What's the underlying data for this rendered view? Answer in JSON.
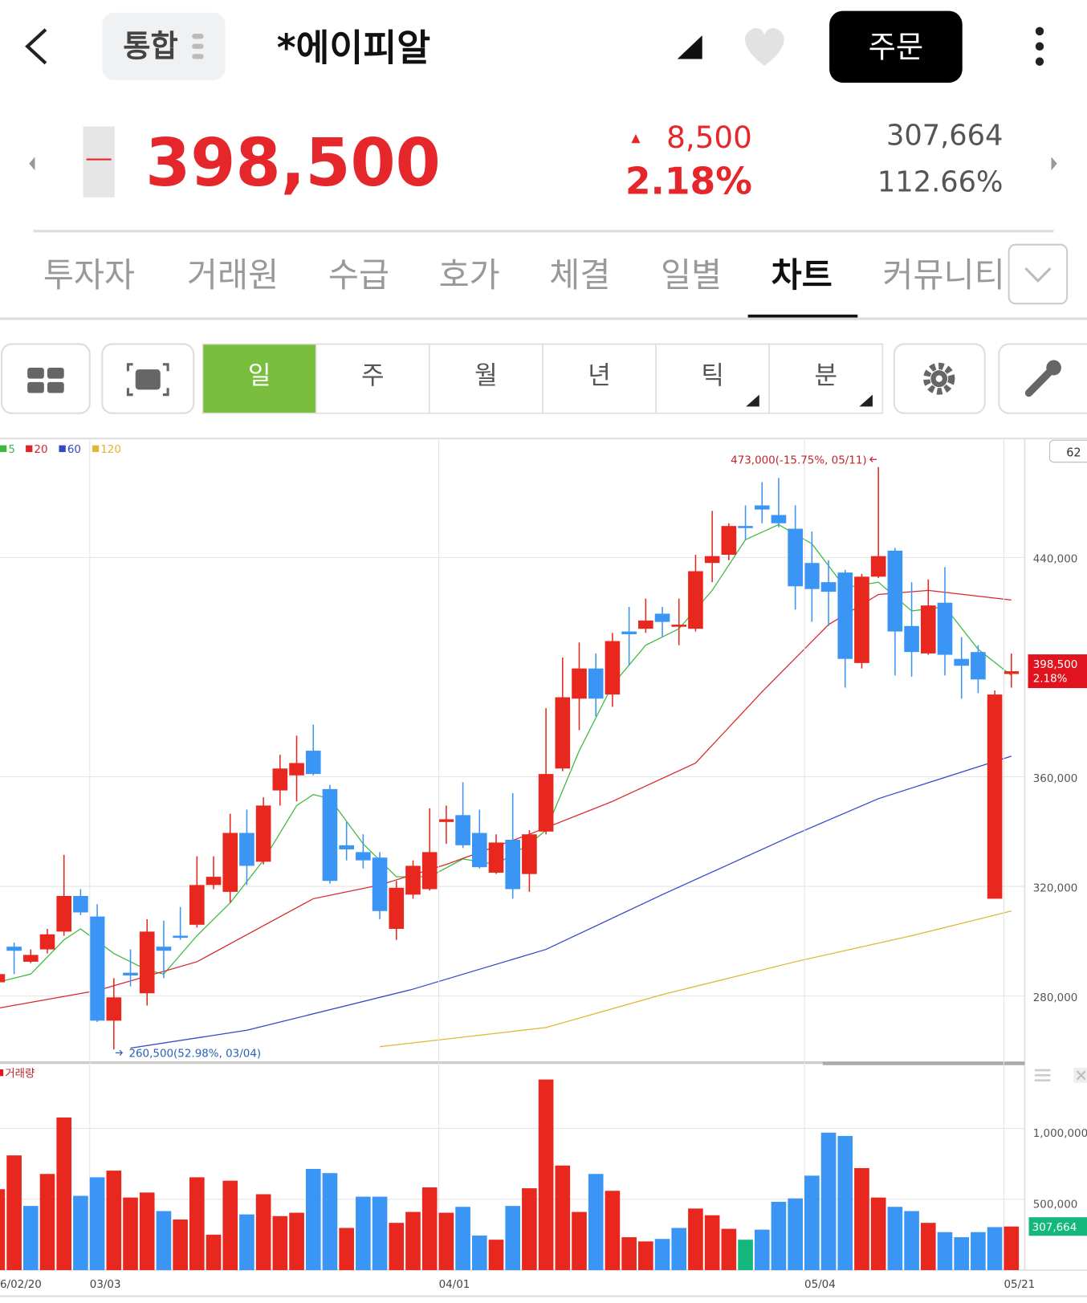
{
  "header": {
    "back": "<",
    "scope": "통합",
    "title": "*에이피알",
    "order": "주문"
  },
  "quote": {
    "price": "398,500",
    "arrow": "▲",
    "change": "8,500",
    "change_rate": "2.18%",
    "volume": "307,664",
    "volume_rate": "112.66%"
  },
  "tabs": {
    "items": [
      "투자자",
      "거래원",
      "수급",
      "호가",
      "체결",
      "일별",
      "차트",
      "커뮤니티"
    ],
    "selected": 6
  },
  "periods": {
    "items": [
      "일",
      "주",
      "월",
      "년",
      "틱",
      "분"
    ],
    "selected": 0
  },
  "chart_data": [
    {
      "type": "candlestick",
      "up_color": "#e8281e",
      "down_color": "#3a95f5",
      "visible_count": "62",
      "categories": [
        "6/02/20",
        null,
        null,
        null,
        null,
        null,
        "03/03",
        null,
        null,
        null,
        null,
        null,
        null,
        null,
        null,
        null,
        null,
        null,
        null,
        null,
        null,
        null,
        null,
        null,
        null,
        null,
        null,
        "04/01",
        null,
        null,
        null,
        null,
        null,
        null,
        null,
        null,
        null,
        null,
        null,
        null,
        null,
        null,
        null,
        null,
        null,
        null,
        null,
        null,
        null,
        "05/04",
        null,
        null,
        null,
        null,
        null,
        null,
        null,
        null,
        null,
        null,
        null,
        "05/21"
      ],
      "open": [
        285000,
        298000,
        292500,
        297000,
        303500,
        316500,
        309000,
        271000,
        288500,
        281000,
        298000,
        302000,
        306000,
        320500,
        318000,
        339500,
        329000,
        355000,
        360500,
        369500,
        355500,
        335000,
        332500,
        330500,
        304500,
        317000,
        319000,
        343500,
        346000,
        339500,
        325000,
        337000,
        324500,
        340000,
        363000,
        388500,
        399500,
        390000,
        413000,
        414000,
        419500,
        415000,
        414000,
        438000,
        441000,
        451500,
        459000,
        455500,
        450500,
        438000,
        431000,
        434500,
        401500,
        433000,
        442500,
        415000,
        405000,
        423500,
        403000,
        405500,
        315500,
        397500
      ],
      "high": [
        289500,
        299500,
        297000,
        304500,
        331500,
        319000,
        313500,
        286500,
        297000,
        308000,
        307500,
        312500,
        331000,
        331000,
        346500,
        348000,
        352500,
        368000,
        375000,
        379000,
        357000,
        343500,
        339000,
        332500,
        322000,
        329500,
        348500,
        349500,
        358000,
        348000,
        339000,
        354000,
        340500,
        385000,
        403500,
        409000,
        405000,
        412500,
        422000,
        425000,
        422000,
        425000,
        441000,
        457000,
        452500,
        459000,
        467500,
        469000,
        459000,
        449500,
        439000,
        435500,
        434000,
        473000,
        443500,
        431000,
        432000,
        436500,
        411000,
        408000,
        391500,
        405000
      ],
      "low": [
        283500,
        288000,
        292000,
        295500,
        302000,
        309500,
        270500,
        260500,
        283500,
        276500,
        286500,
        300500,
        305000,
        319000,
        314000,
        320500,
        328000,
        349500,
        351000,
        360500,
        321000,
        329500,
        326500,
        308000,
        300500,
        315500,
        318500,
        335500,
        334000,
        326500,
        324500,
        315500,
        318000,
        339000,
        362000,
        377000,
        382000,
        385500,
        400500,
        412500,
        411000,
        408000,
        413000,
        431000,
        439000,
        446500,
        452500,
        451000,
        421000,
        416500,
        415000,
        392500,
        399500,
        432500,
        397000,
        396500,
        404500,
        397000,
        388500,
        390500,
        315500,
        392500
      ],
      "close": [
        288000,
        296500,
        295000,
        302500,
        316500,
        310500,
        271000,
        279500,
        287500,
        303500,
        296500,
        301500,
        320500,
        323500,
        339500,
        327500,
        349500,
        363000,
        365000,
        361000,
        322000,
        333500,
        329500,
        311000,
        319500,
        327500,
        332500,
        344500,
        335000,
        327000,
        336000,
        319000,
        339000,
        361000,
        389000,
        399500,
        388500,
        409500,
        412000,
        417000,
        416500,
        415500,
        435000,
        440500,
        451500,
        451000,
        457500,
        452500,
        429500,
        428500,
        427500,
        403000,
        433000,
        440500,
        413000,
        405500,
        422500,
        404500,
        400500,
        395500,
        390000,
        398500
      ],
      "lines": [
        {
          "name": "5",
          "color": "#3cb93c",
          "x": [
            0,
            2,
            4,
            5,
            7,
            9,
            10,
            12,
            14,
            16,
            18,
            19,
            20,
            22,
            24,
            26,
            28,
            30,
            32,
            33,
            35,
            37,
            39,
            41,
            43,
            45,
            47,
            49,
            51,
            53,
            55,
            57,
            59,
            61
          ],
          "values": [
            285000,
            288000,
            300500,
            304500,
            295500,
            289500,
            288000,
            302000,
            314000,
            329500,
            349500,
            353500,
            352000,
            335500,
            323500,
            323500,
            330000,
            328000,
            335500,
            340500,
            369500,
            393500,
            408000,
            414000,
            428000,
            446500,
            452000,
            445000,
            429000,
            431000,
            420500,
            422000,
            406500,
            397000
          ]
        },
        {
          "name": "20",
          "color": "#d9262a",
          "x": [
            0,
            6,
            12,
            19,
            23,
            27,
            32,
            37,
            42,
            46,
            50,
            53,
            56,
            61
          ],
          "values": [
            275500,
            282000,
            292500,
            315500,
            320500,
            328000,
            339000,
            351000,
            365000,
            391000,
            415500,
            426500,
            428000,
            424500
          ]
        },
        {
          "name": "60",
          "color": "#3447c7",
          "x": [
            8,
            15,
            25,
            33,
            40,
            48,
            53,
            61
          ],
          "values": [
            261000,
            267500,
            282500,
            297000,
            317000,
            339000,
            352000,
            367500
          ]
        },
        {
          "name": "120",
          "color": "#e0b733",
          "x": [
            23,
            33,
            40,
            48,
            55,
            61
          ],
          "values": [
            261500,
            268500,
            280500,
            292500,
            302000,
            311000
          ]
        }
      ],
      "annotations": [
        {
          "text": "473,000(-15.75%, 05/11)",
          "value": 473000,
          "x": 53
        },
        {
          "text": "260,500(52.98%, 03/04)",
          "value": 260500,
          "x": 7
        }
      ],
      "last_price": {
        "value": 398500,
        "label": "398,500",
        "change": "2.18%"
      },
      "ylim": [
        256300,
        483400
      ],
      "yticks": [
        {
          "value": 280000,
          "label": "280,000"
        },
        {
          "value": 320000,
          "label": "320,000"
        },
        {
          "value": 360000,
          "label": "360,000"
        },
        {
          "value": 440000,
          "label": "440,000"
        }
      ]
    },
    {
      "type": "bar",
      "title": "거래량",
      "values": [
        571000,
        809500,
        452500,
        678500,
        1077000,
        524000,
        655000,
        702000,
        512000,
        547500,
        416500,
        357000,
        655000,
        250000,
        631000,
        393000,
        535500,
        381000,
        405000,
        714000,
        684500,
        297500,
        518000,
        518000,
        333500,
        410500,
        583500,
        405000,
        446500,
        244000,
        214500,
        452500,
        577500,
        1345000,
        738000,
        410500,
        678500,
        559500,
        232000,
        202500,
        220000,
        297500,
        434500,
        387000,
        291500,
        214500,
        285500,
        482000,
        506000,
        666500,
        970000,
        946500,
        720000,
        512000,
        446500,
        416500,
        333500,
        268000,
        232000,
        268000,
        303500,
        307664
      ],
      "colors": [
        "#e8281e",
        "#e8281e",
        "#3a95f5",
        "#e8281e",
        "#e8281e",
        "#3a95f5",
        "#3a95f5",
        "#e8281e",
        "#e8281e",
        "#e8281e",
        "#3a95f5",
        "#e8281e",
        "#e8281e",
        "#e8281e",
        "#e8281e",
        "#3a95f5",
        "#e8281e",
        "#e8281e",
        "#e8281e",
        "#3a95f5",
        "#3a95f5",
        "#e8281e",
        "#3a95f5",
        "#3a95f5",
        "#e8281e",
        "#e8281e",
        "#e8281e",
        "#e8281e",
        "#3a95f5",
        "#3a95f5",
        "#e8281e",
        "#3a95f5",
        "#e8281e",
        "#e8281e",
        "#e8281e",
        "#e8281e",
        "#3a95f5",
        "#e8281e",
        "#e8281e",
        "#e8281e",
        "#3a95f5",
        "#3a95f5",
        "#e8281e",
        "#e8281e",
        "#e8281e",
        "#14b77c",
        "#3a95f5",
        "#3a95f5",
        "#3a95f5",
        "#3a95f5",
        "#3a95f5",
        "#3a95f5",
        "#e8281e",
        "#e8281e",
        "#3a95f5",
        "#3a95f5",
        "#e8281e",
        "#3a95f5",
        "#3a95f5",
        "#3a95f5",
        "#3a95f5",
        "#e8281e"
      ],
      "last_value": {
        "value": 307664,
        "label": "307,664",
        "color": "#14b77c"
      },
      "ylim": [
        0,
        1452000
      ],
      "yticks": [
        {
          "value": 500000,
          "label": "500,000"
        },
        {
          "value": 1000000,
          "label": "1,000,000"
        }
      ]
    }
  ]
}
